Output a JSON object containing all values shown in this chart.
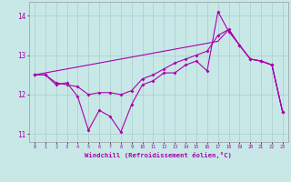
{
  "xlabel": "Windchill (Refroidissement éolien,°C)",
  "x": [
    0,
    1,
    2,
    3,
    4,
    5,
    6,
    7,
    8,
    9,
    10,
    11,
    12,
    13,
    14,
    15,
    16,
    17,
    18,
    19,
    20,
    21,
    22,
    23
  ],
  "line1": [
    12.5,
    12.5,
    12.25,
    12.3,
    11.95,
    11.1,
    11.6,
    11.45,
    11.05,
    11.75,
    12.25,
    12.35,
    12.55,
    12.55,
    12.75,
    12.85,
    12.6,
    14.1,
    13.6,
    13.25,
    12.9,
    12.85,
    12.75,
    11.55
  ],
  "line2": [
    12.5,
    12.5,
    12.3,
    12.25,
    12.2,
    12.0,
    12.05,
    12.05,
    12.0,
    12.1,
    12.4,
    12.5,
    12.65,
    12.8,
    12.9,
    13.0,
    13.1,
    13.5,
    13.65,
    13.25,
    12.9,
    12.85,
    12.75,
    11.55
  ],
  "line3": [
    12.5,
    12.55,
    12.6,
    12.65,
    12.7,
    12.75,
    12.8,
    12.85,
    12.9,
    12.95,
    13.0,
    13.05,
    13.1,
    13.15,
    13.2,
    13.25,
    13.3,
    13.35,
    13.65,
    13.25,
    12.9,
    12.85,
    12.75,
    11.55
  ],
  "line_color": "#aa00aa",
  "bg_color": "#c8e8e8",
  "grid_color": "#aacccc",
  "ylim": [
    10.8,
    14.35
  ],
  "yticks": [
    11,
    12,
    13,
    14
  ],
  "xlim": [
    -0.5,
    23.5
  ]
}
